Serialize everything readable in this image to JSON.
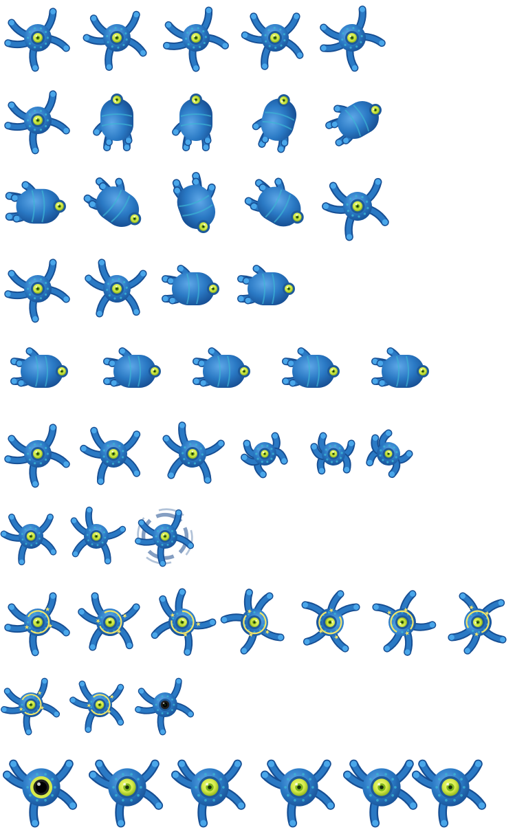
{
  "sprite_sheet": {
    "subject": "blue one-eyed tentacled creature",
    "background": "#ffffff",
    "palette": {
      "body": "#2a79c4",
      "body_dark": "#174f94",
      "body_light": "#5fa8e8",
      "limb_tip": "#4aa7ea",
      "pattern": "#3cb4d3",
      "eye_ring": "#1e5a9a",
      "eye_outer": "#d6ea4a",
      "eye_iris": "#7fb51c",
      "pupil": "#172e10",
      "big_pupil_rim": "#202020",
      "sparkle": "#f2e56a",
      "blur_trail": "#1f4f8f"
    },
    "rows": [
      {
        "frames": [
          {
            "pose": "star",
            "angle": 0
          },
          {
            "pose": "star",
            "angle": 10
          },
          {
            "pose": "star",
            "angle": -5
          },
          {
            "pose": "star",
            "angle": 15
          },
          {
            "pose": "star",
            "angle": -10
          }
        ]
      },
      {
        "frames": [
          {
            "pose": "star",
            "angle": 0
          },
          {
            "pose": "body",
            "angle": -90
          },
          {
            "pose": "body",
            "angle": -90
          },
          {
            "pose": "body",
            "angle": -75
          },
          {
            "pose": "body",
            "angle": -30
          }
        ]
      },
      {
        "frames": [
          {
            "pose": "body",
            "angle": 0
          },
          {
            "pose": "body",
            "angle": 35
          },
          {
            "pose": "body",
            "angle": 70
          },
          {
            "pose": "body",
            "angle": 30
          },
          {
            "pose": "star",
            "angle": 10
          }
        ]
      },
      {
        "frames": [
          {
            "pose": "star",
            "angle": 0
          },
          {
            "pose": "star",
            "angle": 30
          },
          {
            "pose": "body",
            "angle": 0
          },
          {
            "pose": "body",
            "angle": 0
          }
        ]
      },
      {
        "frames": [
          {
            "pose": "body",
            "angle": 0
          },
          {
            "pose": "body",
            "angle": 0
          },
          {
            "pose": "body",
            "angle": 0
          },
          {
            "pose": "body",
            "angle": 0
          },
          {
            "pose": "body",
            "angle": 0
          }
        ]
      },
      {
        "frames": [
          {
            "pose": "star",
            "angle": 0
          },
          {
            "pose": "star",
            "angle": 20
          },
          {
            "pose": "star",
            "angle": 40
          },
          {
            "pose": "curl",
            "angle": 0
          },
          {
            "pose": "curl",
            "angle": 30
          },
          {
            "pose": "curl",
            "angle": 60
          }
        ]
      },
      {
        "frames": [
          {
            "pose": "star",
            "angle": 15
          },
          {
            "pose": "star",
            "angle": 45
          },
          {
            "pose": "spin",
            "angle": 0
          }
        ]
      },
      {
        "frames": [
          {
            "pose": "dizzy",
            "angle": 0
          },
          {
            "pose": "dizzy",
            "angle": 30
          },
          {
            "pose": "dizzy",
            "angle": 60
          },
          {
            "pose": "dizzy",
            "angle": 90
          },
          {
            "pose": "dizzy",
            "angle": 120
          },
          {
            "pose": "dizzy",
            "angle": -90
          },
          {
            "pose": "dizzy",
            "angle": -60
          }
        ]
      },
      {
        "frames": [
          {
            "pose": "dizzy-small",
            "angle": 0
          },
          {
            "pose": "dizzy-small",
            "angle": 20
          },
          {
            "pose": "dark-eye",
            "angle": 0
          }
        ]
      },
      {
        "frames": [
          {
            "pose": "big",
            "angle": 0
          },
          {
            "pose": "big",
            "angle": 0
          },
          {
            "pose": "big",
            "angle": 0
          },
          {
            "pose": "big",
            "angle": 0
          },
          {
            "pose": "big",
            "angle": 0
          },
          {
            "pose": "big",
            "angle": 0
          }
        ]
      }
    ]
  }
}
